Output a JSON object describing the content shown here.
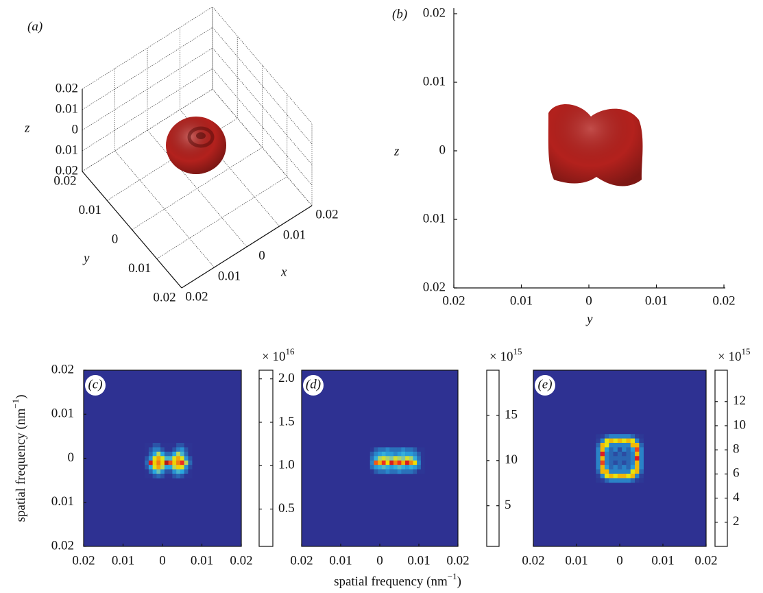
{
  "chart_data": [
    {
      "type": "surface3d",
      "label": "(a)",
      "xlabel": "x",
      "ylabel": "y",
      "zlabel": "z",
      "color": "#b3211d",
      "grid": true,
      "xlim": [
        -0.02,
        0.02
      ],
      "ylim": [
        -0.02,
        0.02
      ],
      "zlim": [
        -0.02,
        0.02
      ],
      "xticks": [
        {
          "value": -0.02,
          "label": "0.02"
        },
        {
          "value": -0.01,
          "label": "0.01"
        },
        0,
        0.01,
        0.02
      ],
      "yticks": [
        {
          "value": -0.02,
          "label": "0.02"
        },
        {
          "value": -0.01,
          "label": "0.01"
        },
        0,
        0.01,
        0.02
      ],
      "zticks": [
        {
          "value": -0.02,
          "label": "0.02"
        },
        {
          "value": -0.01,
          "label": "0.01"
        },
        0,
        0.01,
        0.02
      ]
    },
    {
      "type": "projection",
      "label": "(b)",
      "xlabel": "y",
      "ylabel": "z",
      "color": "#b3211d",
      "xlim": [
        -0.02,
        0.02
      ],
      "ylim": [
        -0.02,
        0.02
      ],
      "xticks": [
        {
          "value": -0.02,
          "label": "0.02"
        },
        {
          "value": -0.01,
          "label": "0.01"
        },
        0,
        0.01,
        0.02
      ],
      "yticks": [
        {
          "value": -0.02,
          "label": "0.02"
        },
        {
          "value": -0.01,
          "label": "0.01"
        },
        0,
        0.01,
        0.02
      ]
    },
    {
      "type": "heatmap",
      "label": "(c)",
      "ylabel": [
        "spatial frequency (nm",
        "−1",
        ")"
      ],
      "xlim": [
        -0.02,
        0.02
      ],
      "ylim": [
        -0.02,
        0.02
      ],
      "xticks": [
        {
          "value": -0.02,
          "label": "0.02"
        },
        {
          "value": -0.01,
          "label": "0.01"
        },
        0,
        0.01,
        0.02
      ],
      "yticks": [
        {
          "value": -0.02,
          "label": "0.02"
        },
        {
          "value": -0.01,
          "label": "0.01"
        },
        0,
        0.01,
        0.02
      ],
      "clim": [
        0.07,
        2.1
      ],
      "cticks": [
        0.5,
        {
          "value": 1,
          "label": "1.0"
        },
        1.5,
        {
          "value": 2,
          "label": "2.0"
        }
      ],
      "multiplier": [
        "× 10",
        "16"
      ],
      "x": [
        -0.004,
        -0.003,
        -0.002,
        -0.001,
        0,
        0.001,
        0.002,
        0.003,
        0.004,
        0.005,
        0.006,
        0.007
      ],
      "y": [
        0.003,
        0.002,
        0.001,
        0,
        -0.001,
        -0.002,
        -0.003,
        -0.004
      ],
      "z": [
        [
          0.1,
          0.1,
          0.4,
          0.4,
          0.1,
          0.1,
          0.1,
          0.1,
          0.4,
          0.4,
          0.1,
          0.1
        ],
        [
          0.1,
          0.4,
          0.6,
          0.6,
          0.4,
          0.1,
          0.1,
          0.4,
          0.6,
          0.7,
          0.4,
          0.1
        ],
        [
          0.1,
          0.5,
          0.8,
          1.2,
          0.8,
          0.5,
          0.5,
          0.8,
          1.2,
          0.9,
          0.5,
          0.1
        ],
        [
          0.4,
          0.7,
          1.3,
          1.5,
          1.3,
          0.9,
          0.9,
          1.3,
          1.5,
          1.3,
          0.7,
          0.4
        ],
        [
          0.5,
          1.9,
          1.4,
          1.6,
          1.4,
          2.0,
          1.7,
          1.4,
          1.6,
          1.8,
          1.2,
          0.5
        ],
        [
          0.4,
          0.8,
          1.3,
          1.5,
          1.2,
          0.8,
          0.8,
          1.2,
          1.4,
          1.3,
          0.7,
          0.3
        ],
        [
          0.1,
          0.5,
          0.8,
          1.0,
          0.7,
          0.4,
          0.4,
          0.7,
          0.9,
          0.8,
          0.5,
          0.1
        ],
        [
          0.1,
          0.1,
          0.4,
          0.5,
          0.4,
          0.1,
          0.1,
          0.4,
          0.5,
          0.4,
          0.1,
          0.1
        ]
      ]
    },
    {
      "type": "heatmap",
      "label": "(d)",
      "xlabel": [
        "spatial frequency (nm",
        "−1",
        ")"
      ],
      "xlim": [
        -0.02,
        0.02
      ],
      "ylim": [
        -0.02,
        0.02
      ],
      "xticks": [
        {
          "value": -0.02,
          "label": "0.02"
        },
        {
          "value": -0.01,
          "label": "0.01"
        },
        0,
        0.01,
        0.02
      ],
      "clim": [
        0.5,
        20
      ],
      "cticks": [
        5,
        10,
        15
      ],
      "multiplier": [
        "× 10",
        "15"
      ],
      "x": [
        -0.002,
        -0.001,
        0,
        0.001,
        0.002,
        0.003,
        0.004,
        0.005,
        0.006,
        0.007,
        0.008,
        0.009,
        0.01,
        0.011
      ],
      "y": [
        0.002,
        0.001,
        0,
        -0.001,
        -0.002,
        -0.003
      ],
      "z": [
        [
          1,
          4,
          5,
          5,
          6,
          5,
          5,
          5,
          6,
          5,
          5,
          4,
          1,
          1
        ],
        [
          4,
          6,
          7,
          8,
          7,
          7,
          6,
          7,
          8,
          7,
          7,
          6,
          4,
          1
        ],
        [
          5,
          8,
          11,
          12,
          11,
          10,
          12,
          11,
          10,
          12,
          11,
          8,
          5,
          1
        ],
        [
          6,
          16,
          14,
          17,
          13,
          18,
          15,
          17,
          14,
          18,
          15,
          13,
          6,
          1
        ],
        [
          5,
          7,
          8,
          9,
          8,
          7,
          8,
          9,
          8,
          7,
          8,
          7,
          5,
          1
        ],
        [
          1,
          4,
          5,
          5,
          6,
          5,
          5,
          6,
          5,
          5,
          5,
          4,
          1,
          1
        ]
      ]
    },
    {
      "type": "heatmap",
      "label": "(e)",
      "xlim": [
        -0.02,
        0.02
      ],
      "ylim": [
        -0.02,
        0.02
      ],
      "xticks": [
        {
          "value": -0.02,
          "label": "0.02"
        },
        {
          "value": -0.01,
          "label": "0.01"
        },
        0,
        0.01,
        0.02
      ],
      "clim": [
        0,
        14.6
      ],
      "cticks": [
        2,
        4,
        6,
        8,
        10,
        12
      ],
      "multiplier": [
        "× 10",
        "15"
      ],
      "x": [
        -0.005,
        -0.004,
        -0.003,
        -0.002,
        -0.001,
        0,
        0.001,
        0.002,
        0.003,
        0.004,
        0.005
      ],
      "y": [
        0.005,
        0.004,
        0.003,
        0.002,
        0.001,
        0,
        -0.001,
        -0.002,
        -0.003,
        -0.004,
        -0.005
      ],
      "z": [
        [
          0.5,
          1,
          3,
          4,
          4,
          4,
          4,
          4,
          3,
          1,
          0.5
        ],
        [
          1,
          4,
          9,
          10,
          9,
          10,
          9,
          10,
          9,
          4,
          1
        ],
        [
          3,
          10,
          9,
          4,
          4,
          4,
          4,
          4,
          10,
          10,
          3
        ],
        [
          4,
          10,
          5,
          3,
          4,
          2,
          4,
          3,
          5,
          12,
          4
        ],
        [
          4,
          13,
          4,
          3,
          2,
          3,
          2,
          3,
          4,
          10,
          4
        ],
        [
          4,
          10,
          4,
          3,
          3,
          3,
          3,
          3,
          4,
          13,
          4
        ],
        [
          4,
          12,
          4,
          3,
          2,
          3,
          2,
          3,
          4,
          10,
          4
        ],
        [
          4,
          10,
          5,
          3,
          4,
          3,
          4,
          3,
          5,
          10,
          4
        ],
        [
          3,
          10,
          10,
          4,
          4,
          4,
          4,
          4,
          9,
          10,
          3
        ],
        [
          1,
          4,
          9,
          10,
          9,
          10,
          10,
          9,
          10,
          4,
          1
        ],
        [
          0.5,
          1,
          3,
          4,
          4,
          4,
          4,
          4,
          3,
          1,
          0.5
        ]
      ]
    }
  ]
}
